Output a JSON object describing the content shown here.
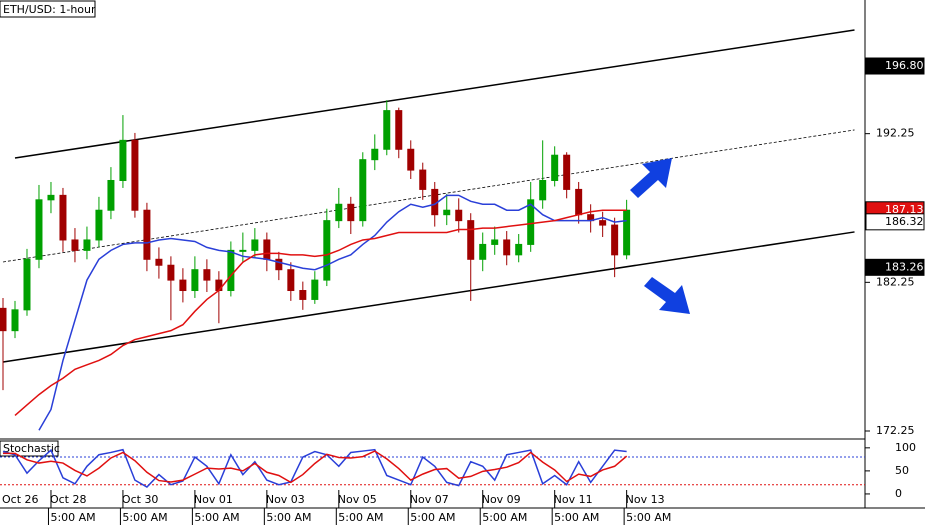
{
  "chart_data": {
    "type": "candlestick",
    "title": "ETH/USD: 1-hour",
    "x": [
      0,
      8,
      16,
      24,
      32,
      40,
      48,
      56,
      64,
      72,
      80,
      88,
      96,
      104,
      112,
      120,
      128,
      136,
      144,
      152,
      160,
      168,
      176,
      184,
      192,
      200,
      208,
      216,
      224,
      232,
      240,
      248,
      256,
      264,
      272,
      280,
      288,
      296,
      304,
      312,
      320,
      328,
      336,
      344,
      352,
      360,
      368,
      376,
      384,
      392,
      400,
      408,
      416
    ],
    "open": [
      180.5,
      179.0,
      180.4,
      183.8,
      187.8,
      188.1,
      185.1,
      184.4,
      185.1,
      187.1,
      189.1,
      191.8,
      187.1,
      183.8,
      183.4,
      182.4,
      181.7,
      183.1,
      182.4,
      181.7,
      184.4,
      184.4,
      185.1,
      183.8,
      183.1,
      181.7,
      181.1,
      182.4,
      186.4,
      187.5,
      186.4,
      190.5,
      191.2,
      193.8,
      191.2,
      189.8,
      188.5,
      186.8,
      187.1,
      186.4,
      183.8,
      184.8,
      185.1,
      184.1,
      184.8,
      187.8,
      189.1,
      190.8,
      188.5,
      186.8,
      186.4,
      186.1,
      184.1
    ],
    "high": [
      181.2,
      181.0,
      184.5,
      188.8,
      189.0,
      188.6,
      185.9,
      186.0,
      188.0,
      190.0,
      193.5,
      192.3,
      187.6,
      184.6,
      184.0,
      183.2,
      184.0,
      183.8,
      183.0,
      185.0,
      185.6,
      185.9,
      185.6,
      184.3,
      183.6,
      182.3,
      183.0,
      187.2,
      188.6,
      188.0,
      191.0,
      192.2,
      194.5,
      194.0,
      191.8,
      190.3,
      189.0,
      188.2,
      187.9,
      186.9,
      185.6,
      186.0,
      185.7,
      185.5,
      189.0,
      191.8,
      191.4,
      191.0,
      189.0,
      187.5,
      187.0,
      186.6,
      187.8
    ],
    "low": [
      175.0,
      178.5,
      180.0,
      183.2,
      186.9,
      184.3,
      183.6,
      183.8,
      184.6,
      186.5,
      188.6,
      186.6,
      183.0,
      182.5,
      179.7,
      180.9,
      181.2,
      181.6,
      179.5,
      181.3,
      183.6,
      183.9,
      183.0,
      182.4,
      181.0,
      180.4,
      180.8,
      182.0,
      185.9,
      185.5,
      186.0,
      189.8,
      190.8,
      190.6,
      189.2,
      187.8,
      186.0,
      186.1,
      185.6,
      181.0,
      183.0,
      184.1,
      183.4,
      183.6,
      184.3,
      187.2,
      188.7,
      187.9,
      186.2,
      185.6,
      185.3,
      182.6,
      183.8
    ],
    "close": [
      179.0,
      180.4,
      183.8,
      187.8,
      188.1,
      185.1,
      184.4,
      185.1,
      187.1,
      189.1,
      191.8,
      187.1,
      183.8,
      183.4,
      182.4,
      181.7,
      183.1,
      182.4,
      181.7,
      184.4,
      184.4,
      185.1,
      183.8,
      183.1,
      181.7,
      181.1,
      182.4,
      186.4,
      187.5,
      186.4,
      190.5,
      191.2,
      193.8,
      191.2,
      189.8,
      188.5,
      186.8,
      187.1,
      186.4,
      183.8,
      184.8,
      185.1,
      184.1,
      184.8,
      187.8,
      189.1,
      190.8,
      188.5,
      186.8,
      186.4,
      186.1,
      184.1,
      187.1
    ],
    "up_color": "#00a000",
    "down_color": "#a00000",
    "series": [
      {
        "color": "#2a3fd8",
        "values": [
          null,
          null,
          null,
          172.3,
          173.7,
          177.0,
          179.7,
          182.4,
          183.8,
          184.4,
          184.8,
          184.9,
          184.9,
          185.1,
          185.2,
          185.1,
          185.0,
          184.6,
          184.4,
          184.3,
          184.0,
          183.9,
          183.8,
          183.6,
          183.4,
          183.2,
          183.1,
          183.4,
          183.8,
          184.1,
          184.8,
          185.4,
          186.3,
          187.0,
          187.5,
          187.3,
          187.5,
          188.1,
          188.1,
          187.7,
          187.5,
          187.5,
          187.1,
          187.1,
          187.5,
          186.8,
          186.4,
          186.4,
          186.4,
          186.4,
          186.6,
          186.3,
          186.4
        ]
      },
      {
        "color": "#e01010",
        "values": [
          null,
          173.3,
          174.0,
          174.7,
          175.3,
          175.8,
          176.4,
          176.7,
          177.0,
          177.4,
          178.0,
          178.4,
          178.6,
          178.8,
          179.0,
          179.4,
          180.3,
          181.1,
          181.7,
          182.7,
          183.6,
          184.1,
          184.2,
          184.2,
          184.1,
          184.1,
          184.0,
          184.1,
          184.4,
          184.8,
          185.1,
          185.2,
          185.4,
          185.6,
          185.6,
          185.6,
          185.6,
          185.6,
          185.8,
          185.8,
          185.9,
          185.9,
          186.0,
          186.1,
          186.2,
          186.3,
          186.4,
          186.6,
          186.8,
          187.0,
          187.1,
          187.1,
          187.1
        ]
      }
    ],
    "trendlines": [
      {
        "x": [
          8,
          568
        ],
        "values": [
          190.61,
          199.22
        ],
        "color": "#000000",
        "dashed": false
      },
      {
        "x": [
          0,
          568
        ],
        "values": [
          183.62,
          192.5
        ],
        "color": "#000000",
        "dashed": true
      },
      {
        "x": [
          0,
          568
        ],
        "values": [
          176.89,
          185.64
        ],
        "color": "#000000",
        "dashed": false
      }
    ],
    "xlim": [
      0,
      577
    ],
    "ylim": [
      171.78,
      201.24
    ],
    "yticks": [
      172.25,
      182.25,
      192.25
    ],
    "price_labels": [
      {
        "value": 196.8,
        "label": "196.80",
        "color": "#000000"
      },
      {
        "value": 187.13,
        "label": "187.13",
        "color": "#e01010"
      },
      {
        "value": 186.32,
        "label": "186.32",
        "color": "#ffffff"
      },
      {
        "value": 183.26,
        "label": "183.26",
        "color": "#000000"
      }
    ],
    "xticks": [
      {
        "value": -16,
        "label": "Oct 26"
      },
      {
        "value": 32,
        "label": "Oct 28"
      },
      {
        "value": 80,
        "label": "Oct 30"
      },
      {
        "value": 128,
        "label": "Nov 01"
      },
      {
        "value": 176,
        "label": "Nov 03"
      },
      {
        "value": 224,
        "label": "Nov 05"
      },
      {
        "value": 272,
        "label": "Nov 07"
      },
      {
        "value": 320,
        "label": "Nov 09"
      },
      {
        "value": 368,
        "label": "Nov 11"
      },
      {
        "value": 416,
        "label": "Nov 13"
      }
    ],
    "xticks_time": [
      {
        "value": 37,
        "label": "5:00 AM"
      },
      {
        "value": 85,
        "label": "5:00 AM"
      },
      {
        "value": 133,
        "label": "5:00 AM"
      },
      {
        "value": 181,
        "label": "5:00 AM"
      },
      {
        "value": 229,
        "label": "5:00 AM"
      },
      {
        "value": 277,
        "label": "5:00 AM"
      },
      {
        "value": 325,
        "label": "5:00 AM"
      },
      {
        "value": 373,
        "label": "5:00 AM"
      },
      {
        "value": 421,
        "label": "5:00 AM"
      }
    ],
    "stochastic": {
      "label": "Stochastic",
      "ylim": [
        -24,
        117
      ],
      "yticks": [
        0,
        50,
        100
      ],
      "levels": [
        {
          "value": 80,
          "color": "#2a3fd8"
        },
        {
          "value": 20,
          "color": "#e01010"
        }
      ],
      "series": [
        {
          "color": "#2a3fd8",
          "values": [
            92,
            85,
            45,
            72,
            95,
            35,
            22,
            60,
            85,
            90,
            96,
            30,
            15,
            42,
            20,
            28,
            80,
            60,
            22,
            85,
            42,
            70,
            30,
            20,
            26,
            80,
            92,
            85,
            60,
            90,
            93,
            96,
            40,
            30,
            20,
            80,
            60,
            25,
            18,
            70,
            60,
            30,
            85,
            90,
            95,
            22,
            40,
            20,
            70,
            25,
            60,
            95,
            92
          ]
        },
        {
          "color": "#e01010",
          "values": [
            88,
            88,
            74,
            67,
            71,
            67,
            51,
            39,
            56,
            78,
            90,
            72,
            47,
            29,
            26,
            30,
            43,
            56,
            54,
            56,
            50,
            66,
            47,
            40,
            25,
            42,
            66,
            86,
            79,
            78,
            81,
            93,
            76,
            55,
            30,
            43,
            53,
            55,
            34,
            38,
            49,
            53,
            58,
            68,
            90,
            69,
            52,
            27,
            43,
            38,
            52,
            60,
            82
          ]
        }
      ]
    }
  }
}
